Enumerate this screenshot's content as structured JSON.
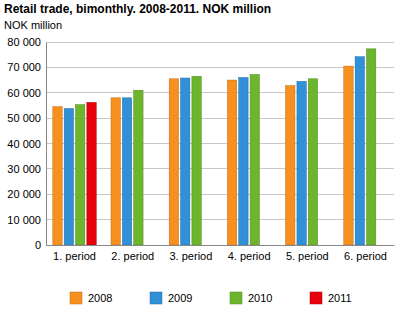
{
  "chart_data": {
    "type": "bar",
    "title": "Retail trade, bimonthly. 2008-2011. NOK million",
    "y_label": "NOK million",
    "categories": [
      "1. period",
      "2. period",
      "3. period",
      "4. period",
      "5. period",
      "6. period"
    ],
    "series": [
      {
        "name": "2008",
        "color": "#f7901e",
        "values": [
          54500,
          58000,
          65500,
          65000,
          62800,
          70500
        ]
      },
      {
        "name": "2009",
        "color": "#3090d8",
        "values": [
          53800,
          58000,
          65800,
          66000,
          64500,
          74200
        ]
      },
      {
        "name": "2010",
        "color": "#6cb52d",
        "values": [
          55300,
          61000,
          66500,
          67200,
          65500,
          77300
        ]
      },
      {
        "name": "2011",
        "color": "#e8000b",
        "values": [
          56200,
          null,
          null,
          null,
          null,
          null
        ]
      }
    ],
    "ylim": [
      0,
      80000
    ],
    "yticks": [
      0,
      {
        "value": 10000,
        "label": "10 000"
      },
      {
        "value": 20000,
        "label": "20 000"
      },
      {
        "value": 30000,
        "label": "30 000"
      },
      {
        "value": 40000,
        "label": "40 000"
      },
      {
        "value": 50000,
        "label": "50 000"
      },
      {
        "value": 60000,
        "label": "60 000"
      },
      {
        "value": 70000,
        "label": "70 000"
      },
      {
        "value": 80000,
        "label": "80 000"
      }
    ],
    "grid": true,
    "legend": "bottom"
  }
}
